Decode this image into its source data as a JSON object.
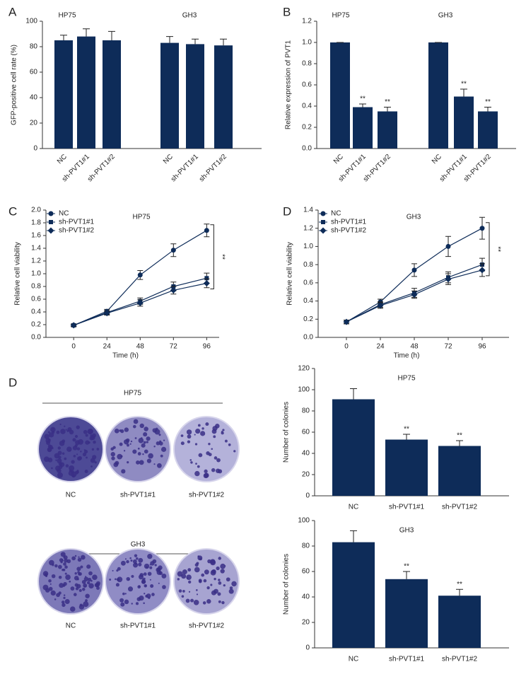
{
  "chart_data": [
    {
      "type": "bar",
      "panel_label": "A",
      "ylabel": "GFP-positive cell rate (%)",
      "ylim": [
        0,
        100
      ],
      "yticks": [
        0,
        20,
        40,
        60,
        80,
        100
      ],
      "color": "#0e2c59",
      "groups": [
        {
          "name": "HP75",
          "categories": [
            "NC",
            "sh-PVT1#1",
            "sh-PVT1#2"
          ],
          "values": [
            85,
            88,
            85
          ],
          "errors": [
            4,
            6,
            7
          ]
        },
        {
          "name": "GH3",
          "categories": [
            "NC",
            "sh-PVT1#1",
            "sh-PVT1#2"
          ],
          "values": [
            83,
            82,
            81
          ],
          "errors": [
            5,
            4,
            5
          ]
        }
      ]
    },
    {
      "type": "bar",
      "panel_label": "B",
      "ylabel": "Relative expression of PVT1",
      "ylim": [
        0,
        1.2
      ],
      "yticks": [
        {
          "value": 0,
          "label": "0.0"
        },
        0.2,
        0.4,
        0.6,
        0.8,
        {
          "value": 1,
          "label": "1.0"
        },
        1.2
      ],
      "color": "#0e2c59",
      "groups": [
        {
          "name": "HP75",
          "categories": [
            "NC",
            "sh-PVT1#1",
            "sh-PVT1#2"
          ],
          "values": [
            1,
            0.39,
            0.35
          ],
          "errors": [
            0,
            0.03,
            0.04
          ],
          "significance": [
            null,
            "**",
            "**"
          ]
        },
        {
          "name": "GH3",
          "categories": [
            "NC",
            "sh-PVT1#1",
            "sh-PVT1#2"
          ],
          "values": [
            1,
            0.49,
            0.35
          ],
          "errors": [
            0,
            0.07,
            0.04
          ],
          "significance": [
            null,
            "**",
            "**"
          ]
        }
      ]
    },
    {
      "type": "line",
      "panel_label": "C",
      "title": "HP75",
      "xlabel": "Time (h)",
      "ylabel": "Relative cell viability",
      "xlim": [
        -20,
        105
      ],
      "xticks": [
        0,
        24,
        48,
        72,
        96
      ],
      "ylim": [
        0,
        2
      ],
      "yticks": [
        {
          "value": 0,
          "label": "0.0"
        },
        0.2,
        0.4,
        0.6,
        0.8,
        {
          "value": 1,
          "label": "1.0"
        },
        1.2,
        1.4,
        1.6,
        1.8,
        {
          "value": 2,
          "label": "2.0"
        }
      ],
      "significance": "**",
      "x": [
        0,
        24,
        48,
        72,
        96
      ],
      "series": [
        {
          "name": "NC",
          "color": "#0e2c59",
          "marker": "circle",
          "values": [
            0.19,
            0.41,
            0.98,
            1.37,
            1.68
          ],
          "errors": [
            0.02,
            0.03,
            0.07,
            0.1,
            0.1
          ]
        },
        {
          "name": "sh-PVT1#1",
          "color": "#0e2c59",
          "marker": "square",
          "values": [
            0.19,
            0.39,
            0.57,
            0.8,
            0.93
          ],
          "errors": [
            0.02,
            0.03,
            0.05,
            0.07,
            0.08
          ]
        },
        {
          "name": "sh-PVT1#2",
          "color": "#0e2c59",
          "marker": "diamond",
          "values": [
            0.19,
            0.38,
            0.54,
            0.74,
            0.85
          ],
          "errors": [
            0.02,
            0.03,
            0.05,
            0.06,
            0.07
          ]
        }
      ]
    },
    {
      "type": "line",
      "panel_label": "D",
      "title": "GH3",
      "xlabel": "Time (h)",
      "ylabel": "Relative cell viability",
      "xlim": [
        -20,
        115
      ],
      "xticks": [
        0,
        24,
        48,
        72,
        96
      ],
      "ylim": [
        0,
        1.4
      ],
      "yticks": [
        {
          "value": 0,
          "label": "0.0"
        },
        0.2,
        0.4,
        0.6,
        0.8,
        {
          "value": 1,
          "label": "1.0"
        },
        1.2,
        1.4
      ],
      "significance": "**",
      "x": [
        0,
        24,
        48,
        72,
        96
      ],
      "series": [
        {
          "name": "NC",
          "color": "#0e2c59",
          "marker": "circle",
          "values": [
            0.17,
            0.39,
            0.74,
            1.0,
            1.2
          ],
          "errors": [
            0.02,
            0.03,
            0.07,
            0.11,
            0.12
          ]
        },
        {
          "name": "sh-PVT1#1",
          "color": "#0e2c59",
          "marker": "square",
          "values": [
            0.17,
            0.36,
            0.49,
            0.66,
            0.8
          ],
          "errors": [
            0.02,
            0.03,
            0.05,
            0.06,
            0.07
          ]
        },
        {
          "name": "sh-PVT1#2",
          "color": "#0e2c59",
          "marker": "diamond",
          "values": [
            0.17,
            0.35,
            0.47,
            0.64,
            0.74
          ],
          "errors": [
            0.02,
            0.03,
            0.04,
            0.06,
            0.07
          ]
        }
      ]
    },
    {
      "type": "bar",
      "ylabel": "Number of colonies",
      "ylim": [
        0,
        120
      ],
      "yticks": [
        0,
        20,
        40,
        60,
        80,
        100,
        120
      ],
      "color": "#0e2c59",
      "groups": [
        {
          "name": "HP75",
          "categories": [
            "NC",
            "sh-PVT1#1",
            "sh-PVT1#2"
          ],
          "values": [
            91,
            53,
            47
          ],
          "errors": [
            10,
            5,
            5
          ],
          "significance": [
            null,
            "**",
            "**"
          ]
        }
      ]
    },
    {
      "type": "bar",
      "ylabel": "Number of colonies",
      "ylim": [
        0,
        100
      ],
      "yticks": [
        0,
        20,
        40,
        60,
        80,
        100
      ],
      "color": "#0e2c59",
      "groups": [
        {
          "name": "GH3",
          "categories": [
            "NC",
            "sh-PVT1#1",
            "sh-PVT1#2"
          ],
          "values": [
            83,
            54,
            41
          ],
          "errors": [
            9,
            6,
            5
          ],
          "significance": [
            null,
            "**",
            "**"
          ]
        }
      ]
    }
  ],
  "colony_images": {
    "panel_label": "D",
    "plates": [
      {
        "title": "HP75",
        "labels": [
          "NC",
          "sh-PVT1#1",
          "sh-PVT1#2"
        ]
      },
      {
        "title": "GH3",
        "labels": [
          "NC",
          "sh-PVT1#1",
          "sh-PVT1#2"
        ]
      }
    ]
  }
}
